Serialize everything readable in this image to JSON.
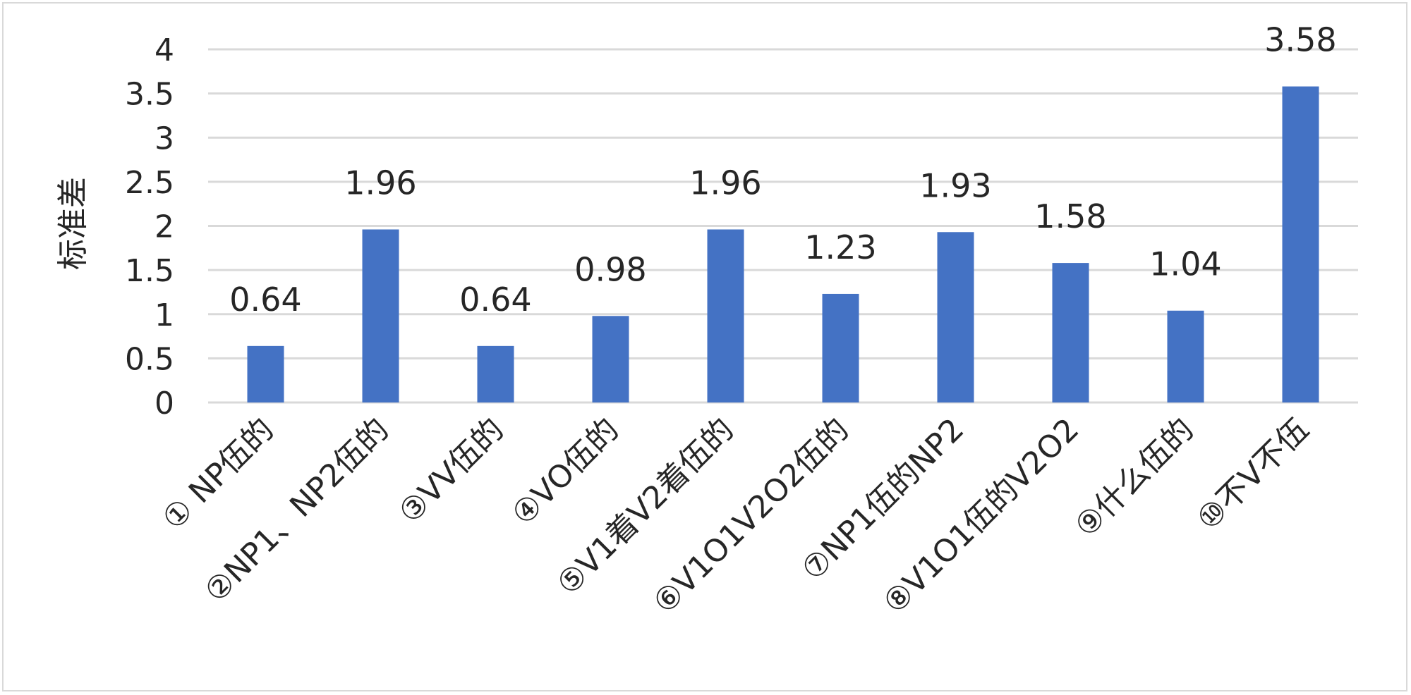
{
  "chart_data": {
    "type": "bar",
    "title": "",
    "xlabel": "",
    "ylabel": "标准差",
    "ylim": [
      0,
      4
    ],
    "yticks": [
      "0",
      "0.5",
      "1",
      "1.5",
      "2",
      "2.5",
      "3",
      "3.5",
      "4"
    ],
    "grid": true,
    "legend": "none",
    "categories": [
      "① NP伍的",
      "②NP1、NP2伍的",
      "③VV伍的",
      "④VO伍的",
      "⑤V1着V2着伍的",
      "⑥V1O1V2O2伍的",
      "⑦NP1伍的NP2",
      "⑧V1O1伍的V2O2",
      "⑨什么伍的",
      "⑩不V不伍"
    ],
    "values": [
      0.64,
      1.96,
      0.64,
      0.98,
      1.96,
      1.23,
      1.93,
      1.58,
      1.04,
      3.58
    ],
    "data_labels": [
      "0.64",
      "1.96",
      "0.64",
      "0.98",
      "1.96",
      "1.23",
      "1.93",
      "1.58",
      "1.04",
      "3.58"
    ],
    "colors": {
      "bar": "#4472c4",
      "grid": "#d9d9d9",
      "text": "#262626",
      "border": "#d9d9d9"
    }
  }
}
